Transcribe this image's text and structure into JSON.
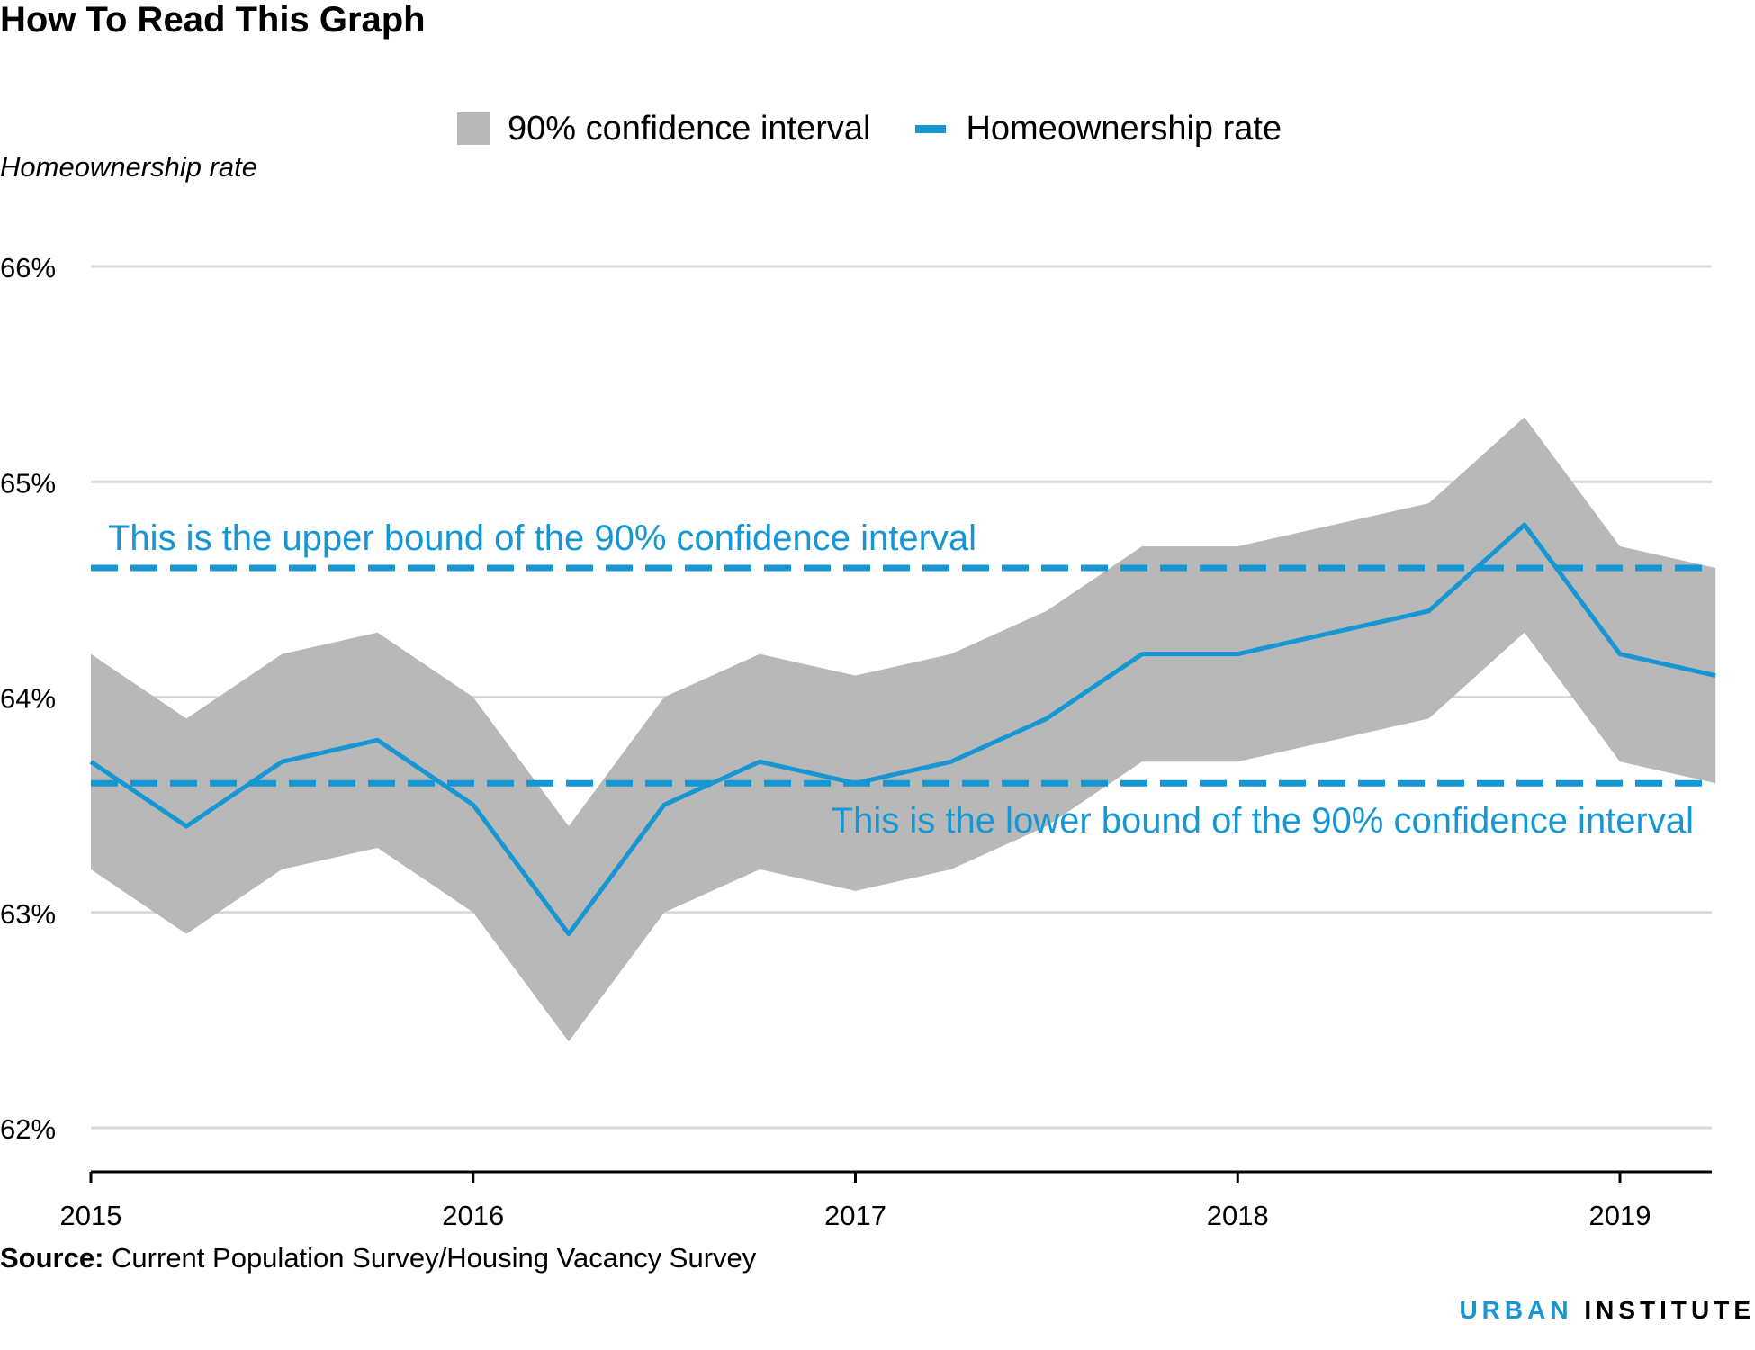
{
  "title": "How To Read This Graph",
  "legend": {
    "band_label": "90% confidence interval",
    "line_label": "Homeownership rate"
  },
  "source": {
    "label": "Source:",
    "text": "Current Population Survey/Housing Vacancy Survey"
  },
  "branding": {
    "part1": "URBAN",
    "part2": "INSTITUTE"
  },
  "colors": {
    "accent": "#1696d2",
    "band": "#b8b8b8",
    "grid": "#d9d9d9"
  },
  "chart_data": {
    "type": "line",
    "ylabel": "Homeownership rate",
    "xlabel": "",
    "ylim": [
      62,
      66
    ],
    "yticks": [
      62,
      63,
      64,
      65,
      66
    ],
    "ytick_labels": [
      "62%",
      "63%",
      "64%",
      "65%",
      "66%"
    ],
    "xticks": [
      2015,
      2016,
      2017,
      2018,
      2019
    ],
    "xtick_labels": [
      "2015",
      "2016",
      "2017",
      "2018",
      "2019"
    ],
    "grid": true,
    "legend_position": "top",
    "x": [
      2015.0,
      2015.25,
      2015.5,
      2015.75,
      2016.0,
      2016.25,
      2016.5,
      2016.75,
      2017.0,
      2017.25,
      2017.5,
      2017.75,
      2018.0,
      2018.25,
      2018.5,
      2018.75,
      2019.0,
      2019.25
    ],
    "series": [
      {
        "name": "Homeownership rate",
        "values": [
          63.7,
          63.4,
          63.7,
          63.8,
          63.5,
          62.9,
          63.5,
          63.7,
          63.6,
          63.7,
          63.9,
          64.2,
          64.2,
          64.3,
          64.4,
          64.8,
          64.2,
          64.1
        ]
      },
      {
        "name": "90% confidence interval",
        "lower": [
          63.2,
          62.9,
          63.2,
          63.3,
          63.0,
          62.4,
          63.0,
          63.2,
          63.1,
          63.2,
          63.4,
          63.7,
          63.7,
          63.8,
          63.9,
          64.3,
          63.7,
          63.6
        ],
        "upper": [
          64.2,
          63.9,
          64.2,
          64.3,
          64.0,
          63.4,
          64.0,
          64.2,
          64.1,
          64.2,
          64.4,
          64.7,
          64.7,
          64.8,
          64.9,
          65.3,
          64.7,
          64.6
        ]
      }
    ],
    "reference_lines": [
      {
        "y": 64.6,
        "label": "This is the upper bound of the 90% confidence interval"
      },
      {
        "y": 63.6,
        "label": "This is the lower bound of the 90% confidence interval"
      }
    ]
  }
}
